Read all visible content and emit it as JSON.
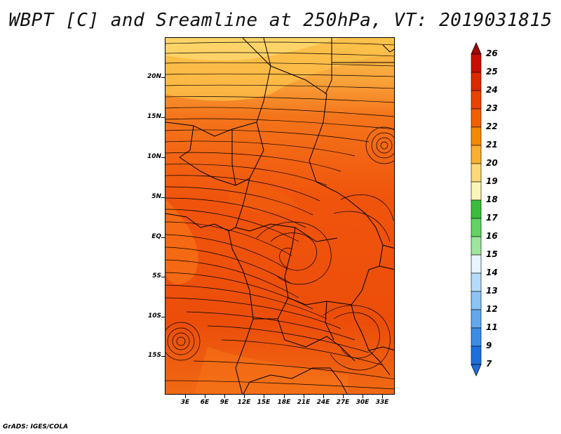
{
  "title": "WBPT [C] and Sreamline at 250hPa, VT: 2019031815",
  "credit": "GrADS: IGES/COLA",
  "lat_labels": [
    "20N",
    "15N",
    "10N",
    "5N",
    "EQ",
    "5S",
    "10S",
    "15S"
  ],
  "lon_labels": [
    "3E",
    "6E",
    "9E",
    "12E",
    "15E",
    "18E",
    "21E",
    "24E",
    "27E",
    "30E",
    "33E"
  ],
  "colorbar": {
    "levels": [
      "26",
      "25",
      "24",
      "23",
      "22",
      "21",
      "20",
      "19",
      "18",
      "17",
      "16",
      "15",
      "14",
      "13",
      "12",
      "11",
      "9",
      "7"
    ],
    "colors": [
      "#a50000",
      "#c80e00",
      "#dc2a00",
      "#ea4200",
      "#f06000",
      "#f48a00",
      "#f8b030",
      "#fcd879",
      "#fcf5b9",
      "#3cbc3c",
      "#64d264",
      "#9ee69e",
      "#e6f5ff",
      "#b4dcfa",
      "#8cc4f4",
      "#64a8ec",
      "#3c8ce4",
      "#1e6edc"
    ]
  },
  "colors": {
    "background": "#f2510a",
    "warm_band": "#fca028",
    "orange": "#f87214"
  }
}
